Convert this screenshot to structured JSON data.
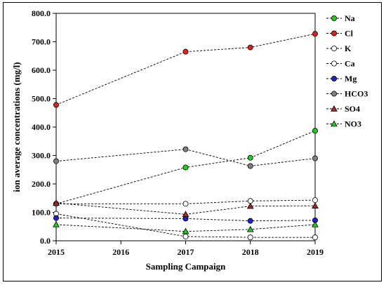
{
  "chart_data": {
    "type": "line",
    "xlabel": "Sampling Campaign",
    "ylabel": "ion average concentrations (mg/l)",
    "x_ticks": [
      "2015",
      "2016",
      "2017",
      "2018",
      "2019"
    ],
    "y_ticks": [
      "0.0",
      "100.0",
      "200.0",
      "300.0",
      "400.0",
      "500.0",
      "600.0",
      "700.0",
      "800.0"
    ],
    "xlim": [
      2015,
      2019
    ],
    "ylim": [
      0,
      800
    ],
    "legend_position": "top-right",
    "series": [
      {
        "name": "Na",
        "marker": "circle",
        "color": "#22cc22",
        "x": [
          2015,
          2017,
          2018,
          2019
        ],
        "y": [
          130,
          258,
          292,
          387
        ]
      },
      {
        "name": "Cl",
        "marker": "circle",
        "color": "#e02020",
        "x": [
          2015,
          2017,
          2018,
          2019
        ],
        "y": [
          478,
          665,
          680,
          728
        ]
      },
      {
        "name": "K",
        "marker": "circle",
        "color": "#ffffff",
        "x": [
          2015,
          2017,
          2018,
          2019
        ],
        "y": [
          95,
          15,
          12,
          12
        ]
      },
      {
        "name": "Ca",
        "marker": "circle",
        "color": "#ffffff",
        "x": [
          2015,
          2017,
          2018,
          2019
        ],
        "y": [
          130,
          130,
          140,
          143
        ]
      },
      {
        "name": "Mg",
        "marker": "circle",
        "color": "#1f1fcc",
        "x": [
          2015,
          2017,
          2018,
          2019
        ],
        "y": [
          80,
          78,
          70,
          72
        ]
      },
      {
        "name": "HCO3",
        "marker": "circle",
        "color": "#808080",
        "x": [
          2015,
          2017,
          2018,
          2019
        ],
        "y": [
          280,
          322,
          263,
          290
        ]
      },
      {
        "name": "SO4",
        "marker": "triangle",
        "color": "#b22222",
        "x": [
          2015,
          2017,
          2018,
          2019
        ],
        "y": [
          133,
          93,
          122,
          123
        ]
      },
      {
        "name": "NO3",
        "marker": "triangle",
        "color": "#22cc22",
        "x": [
          2015,
          2017,
          2018,
          2019
        ],
        "y": [
          57,
          33,
          40,
          57
        ]
      }
    ]
  }
}
